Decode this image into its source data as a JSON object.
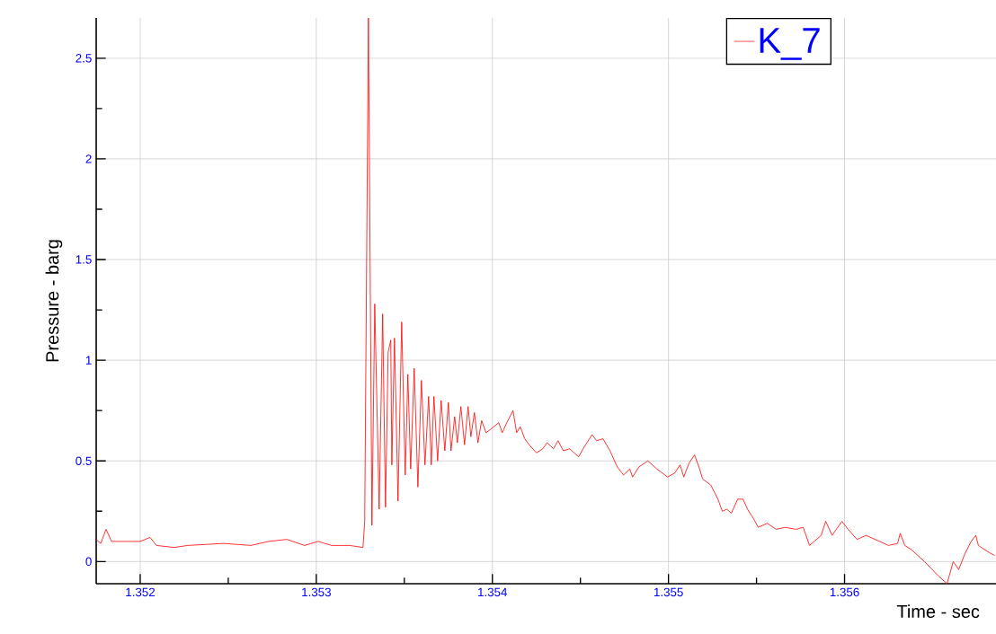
{
  "chart_data": {
    "type": "line",
    "xlabel": "Time - sec",
    "ylabel": "Pressure - barg",
    "xlim": [
      1.35175,
      1.35686
    ],
    "ylim": [
      -0.11,
      2.7
    ],
    "xticks": [
      1.352,
      1.353,
      1.354,
      1.355,
      1.356
    ],
    "yticks": [
      0,
      0.5,
      1,
      1.5,
      2,
      2.5
    ],
    "grid": true,
    "legend": "top right",
    "x": [
      1.35175,
      1.351776,
      1.351806,
      1.351837,
      1.352,
      1.352056,
      1.352092,
      1.352194,
      1.35227,
      1.352474,
      1.352628,
      1.35273,
      1.352832,
      1.352934,
      1.35301,
      1.353087,
      1.353189,
      1.353265,
      1.353275,
      1.353296,
      1.353316,
      1.353332,
      1.353357,
      1.353377,
      1.353393,
      1.353408,
      1.353423,
      1.353429,
      1.353444,
      1.353464,
      1.353485,
      1.353505,
      1.35352,
      1.353536,
      1.353556,
      1.353577,
      1.353597,
      1.353617,
      1.353638,
      1.353653,
      1.353668,
      1.353689,
      1.353709,
      1.35373,
      1.35375,
      1.353765,
      1.353786,
      1.353801,
      1.353821,
      1.353842,
      1.353862,
      1.353878,
      1.353898,
      1.353918,
      1.353939,
      1.353964,
      1.353995,
      1.354036,
      1.354056,
      1.354082,
      1.354117,
      1.354138,
      1.354158,
      1.354184,
      1.354209,
      1.35425,
      1.354286,
      1.354311,
      1.354347,
      1.354373,
      1.354403,
      1.354439,
      1.35449,
      1.354515,
      1.354566,
      1.354592,
      1.354628,
      1.354668,
      1.354709,
      1.354745,
      1.35478,
      1.354796,
      1.354832,
      1.354883,
      1.354934,
      1.354995,
      1.355036,
      1.355066,
      1.355087,
      1.355117,
      1.355148,
      1.355173,
      1.355194,
      1.35524,
      1.355281,
      1.355306,
      1.355332,
      1.355357,
      1.355393,
      1.355423,
      1.355449,
      1.355485,
      1.35551,
      1.355561,
      1.355612,
      1.355663,
      1.355724,
      1.355765,
      1.355801,
      1.355867,
      1.355893,
      1.355929,
      1.355985,
      1.35602,
      1.356071,
      1.356122,
      1.356199,
      1.35625,
      1.356301,
      1.356316,
      1.356342,
      1.356378,
      1.356454,
      1.356531,
      1.356582,
      1.356617,
      1.356648,
      1.356684,
      1.356719,
      1.356745,
      1.35676,
      1.356811,
      1.356852
    ],
    "series": [
      {
        "name": "K_7",
        "color": "#ff0000",
        "values": [
          0.11,
          0.09,
          0.16,
          0.1,
          0.1,
          0.12,
          0.08,
          0.07,
          0.08,
          0.09,
          0.08,
          0.1,
          0.11,
          0.08,
          0.1,
          0.08,
          0.08,
          0.07,
          0.2,
          2.7,
          0.18,
          1.28,
          0.26,
          1.23,
          0.27,
          1.04,
          1.1,
          0.48,
          1.11,
          0.3,
          1.19,
          0.43,
          0.93,
          0.46,
          0.96,
          0.37,
          0.9,
          0.48,
          0.82,
          0.48,
          0.82,
          0.5,
          0.8,
          0.55,
          0.79,
          0.55,
          0.72,
          0.59,
          0.77,
          0.58,
          0.77,
          0.62,
          0.74,
          0.59,
          0.7,
          0.64,
          0.66,
          0.69,
          0.64,
          0.69,
          0.75,
          0.64,
          0.67,
          0.61,
          0.58,
          0.54,
          0.56,
          0.59,
          0.56,
          0.6,
          0.55,
          0.56,
          0.52,
          0.56,
          0.63,
          0.6,
          0.61,
          0.55,
          0.47,
          0.43,
          0.46,
          0.42,
          0.47,
          0.5,
          0.46,
          0.42,
          0.44,
          0.48,
          0.42,
          0.49,
          0.53,
          0.47,
          0.41,
          0.38,
          0.31,
          0.25,
          0.26,
          0.24,
          0.31,
          0.31,
          0.26,
          0.21,
          0.17,
          0.19,
          0.16,
          0.17,
          0.16,
          0.17,
          0.08,
          0.13,
          0.2,
          0.13,
          0.2,
          0.16,
          0.11,
          0.13,
          0.1,
          0.08,
          0.09,
          0.14,
          0.08,
          0.06,
          0,
          -0.07,
          -0.11,
          0,
          -0.04,
          0.04,
          0.1,
          0.13,
          0.08,
          0.05,
          0.03
        ]
      }
    ]
  }
}
